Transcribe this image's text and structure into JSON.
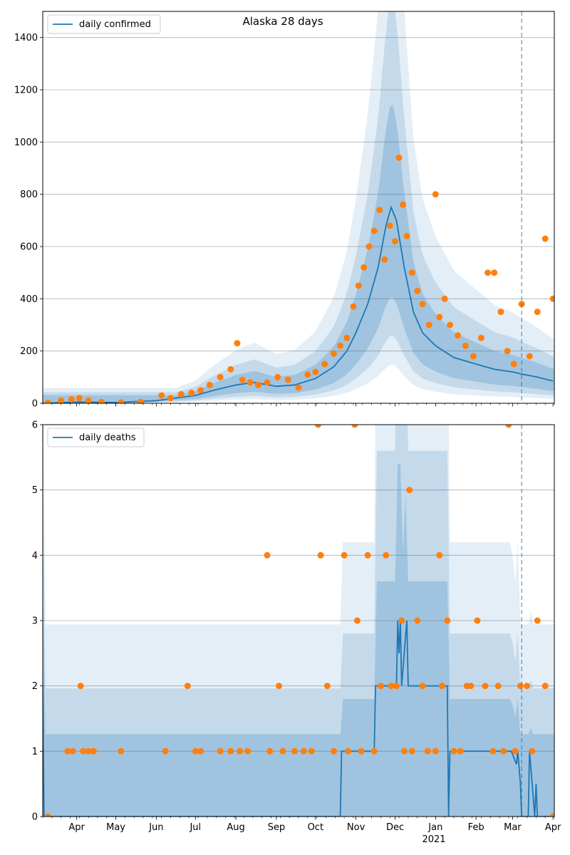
{
  "chart_data": [
    {
      "type": "line",
      "title": "Alaska 28 days",
      "xlabel": "",
      "ylabel": "",
      "ylim": [
        0,
        1500
      ],
      "yticks": [
        0,
        200,
        400,
        600,
        800,
        1000,
        1200,
        1400
      ],
      "grid": "horizontal",
      "legend_placement": "top-left",
      "colors": {
        "line": "#1f77b4",
        "points": "#ff7f0e",
        "band": "#1f77b4",
        "vline": "#1f77b4"
      },
      "series": [
        {
          "name": "daily confirmed",
          "kind": "line",
          "x": [
            "2020-03-06",
            "2020-04-01",
            "2020-05-01",
            "2020-06-01",
            "2020-07-01",
            "2020-07-15",
            "2020-08-01",
            "2020-08-15",
            "2020-09-01",
            "2020-09-15",
            "2020-10-01",
            "2020-10-15",
            "2020-10-25",
            "2020-11-01",
            "2020-11-10",
            "2020-11-18",
            "2020-11-24",
            "2020-11-28",
            "2020-12-02",
            "2020-12-08",
            "2020-12-15",
            "2020-12-22",
            "2021-01-01",
            "2021-01-15",
            "2021-02-01",
            "2021-02-15",
            "2021-03-01",
            "2021-03-10",
            "2021-03-20",
            "2021-04-01"
          ],
          "y": [
            0,
            5,
            3,
            10,
            30,
            50,
            70,
            80,
            65,
            70,
            95,
            140,
            200,
            270,
            380,
            520,
            680,
            750,
            700,
            520,
            350,
            270,
            220,
            175,
            150,
            130,
            120,
            110,
            100,
            85
          ]
        },
        {
          "name": "",
          "kind": "scatter",
          "x": [
            "2020-03-10",
            "2020-03-20",
            "2020-03-28",
            "2020-04-03",
            "2020-04-10",
            "2020-04-20",
            "2020-05-05",
            "2020-05-20",
            "2020-06-05",
            "2020-06-12",
            "2020-06-20",
            "2020-06-28",
            "2020-07-05",
            "2020-07-12",
            "2020-07-20",
            "2020-07-28",
            "2020-08-02",
            "2020-08-06",
            "2020-08-12",
            "2020-08-18",
            "2020-08-25",
            "2020-09-02",
            "2020-09-10",
            "2020-09-18",
            "2020-09-25",
            "2020-10-01",
            "2020-10-08",
            "2020-10-15",
            "2020-10-20",
            "2020-10-25",
            "2020-10-30",
            "2020-11-03",
            "2020-11-07",
            "2020-11-11",
            "2020-11-15",
            "2020-11-19",
            "2020-11-23",
            "2020-11-27",
            "2020-12-01",
            "2020-12-04",
            "2020-12-07",
            "2020-12-10",
            "2020-12-14",
            "2020-12-18",
            "2020-12-22",
            "2020-12-27",
            "2021-01-01",
            "2021-01-04",
            "2021-01-08",
            "2021-01-12",
            "2021-01-18",
            "2021-01-24",
            "2021-01-30",
            "2021-02-05",
            "2021-02-10",
            "2021-02-15",
            "2021-02-20",
            "2021-02-25",
            "2021-03-02",
            "2021-03-08",
            "2021-03-14",
            "2021-03-20",
            "2021-03-26",
            "2021-04-01"
          ],
          "y": [
            2,
            10,
            15,
            20,
            10,
            5,
            3,
            5,
            30,
            20,
            35,
            40,
            50,
            70,
            100,
            130,
            230,
            90,
            80,
            70,
            80,
            100,
            90,
            60,
            110,
            120,
            150,
            190,
            220,
            250,
            370,
            450,
            520,
            600,
            660,
            740,
            550,
            680,
            620,
            940,
            760,
            640,
            500,
            430,
            380,
            300,
            800,
            330,
            400,
            300,
            260,
            220,
            180,
            250,
            500,
            500,
            350,
            200,
            150,
            380,
            180,
            350,
            630,
            400
          ]
        }
      ]
    },
    {
      "type": "line",
      "title": "",
      "xlabel": "",
      "ylabel": "",
      "ylim": [
        0,
        6
      ],
      "yticks": [
        0,
        1,
        2,
        3,
        4,
        5,
        6
      ],
      "grid": "horizontal",
      "legend_placement": "top-left",
      "x_ticks": [
        "Apr",
        "May",
        "Jun",
        "Jul",
        "Aug",
        "Sep",
        "Oct",
        "Nov",
        "Dec",
        "Jan",
        "Feb",
        "Mar",
        "Apr"
      ],
      "x_tick_dates": [
        "2020-04-01",
        "2020-05-01",
        "2020-06-01",
        "2020-07-01",
        "2020-08-01",
        "2020-09-01",
        "2020-10-01",
        "2020-11-01",
        "2020-12-01",
        "2021-01-01",
        "2021-02-01",
        "2021-03-01",
        "2021-04-01"
      ],
      "x_year_label": "2021",
      "vline_date": "2021-03-08",
      "series": [
        {
          "name": "daily deaths",
          "kind": "line",
          "x": [
            "2020-03-06",
            "2020-03-07",
            "2020-10-20",
            "2020-10-21",
            "2020-11-15",
            "2020-11-16",
            "2020-11-28",
            "2020-12-02",
            "2020-12-03",
            "2020-12-04",
            "2020-12-05",
            "2020-12-06",
            "2020-12-10",
            "2020-12-11",
            "2020-12-25",
            "2021-01-10",
            "2021-01-11",
            "2021-01-12",
            "2021-01-13",
            "2021-02-20",
            "2021-02-28",
            "2021-03-04",
            "2021-03-05",
            "2021-03-07",
            "2021-03-08",
            "2021-03-13",
            "2021-03-14",
            "2021-03-18",
            "2021-03-19",
            "2021-03-20",
            "2021-03-22",
            "2021-04-01"
          ],
          "y": [
            2,
            0,
            0,
            1,
            1,
            2,
            2,
            2,
            3,
            2.5,
            3,
            2,
            3,
            2,
            2,
            2,
            0,
            1,
            1,
            1,
            1,
            0.8,
            1,
            0.5,
            0,
            0,
            1,
            0,
            0.5,
            0,
            0,
            0
          ]
        },
        {
          "name": "",
          "kind": "scatter",
          "x": [
            "2020-03-10",
            "2020-03-25",
            "2020-03-29",
            "2020-04-04",
            "2020-04-06",
            "2020-04-10",
            "2020-04-14",
            "2020-05-05",
            "2020-06-08",
            "2020-06-25",
            "2020-07-01",
            "2020-07-05",
            "2020-07-20",
            "2020-07-28",
            "2020-08-04",
            "2020-08-10",
            "2020-08-25",
            "2020-08-27",
            "2020-09-03",
            "2020-09-06",
            "2020-09-15",
            "2020-09-22",
            "2020-09-28",
            "2020-10-03",
            "2020-10-05",
            "2020-10-10",
            "2020-10-15",
            "2020-10-23",
            "2020-10-26",
            "2020-10-31",
            "2020-11-02",
            "2020-11-05",
            "2020-11-10",
            "2020-11-15",
            "2020-11-20",
            "2020-11-24",
            "2020-11-28",
            "2020-12-02",
            "2020-12-06",
            "2020-12-08",
            "2020-12-12",
            "2020-12-14",
            "2020-12-18",
            "2020-12-22",
            "2020-12-26",
            "2021-01-01",
            "2021-01-04",
            "2021-01-06",
            "2021-01-10",
            "2021-01-15",
            "2021-01-20",
            "2021-01-25",
            "2021-01-28",
            "2021-02-02",
            "2021-02-08",
            "2021-02-14",
            "2021-02-18",
            "2021-02-22",
            "2021-02-26",
            "2021-03-03",
            "2021-03-07",
            "2021-03-12",
            "2021-03-16",
            "2021-03-20",
            "2021-03-26",
            "2021-04-01"
          ],
          "y": [
            0,
            1,
            1,
            2,
            1,
            1,
            1,
            1,
            1,
            2,
            1,
            1,
            1,
            1,
            1,
            1,
            4,
            1,
            2,
            1,
            1,
            1,
            1,
            6,
            4,
            2,
            1,
            4,
            1,
            6,
            3,
            1,
            4,
            1,
            2,
            4,
            2,
            2,
            3,
            1,
            5,
            1,
            3,
            2,
            1,
            1,
            4,
            2,
            3,
            1,
            1,
            2,
            2,
            3,
            2,
            1,
            2,
            1,
            6,
            1,
            2,
            2,
            1,
            3,
            2,
            0
          ]
        }
      ]
    }
  ],
  "legend": {
    "top": "daily confirmed",
    "bottom": "daily deaths"
  }
}
